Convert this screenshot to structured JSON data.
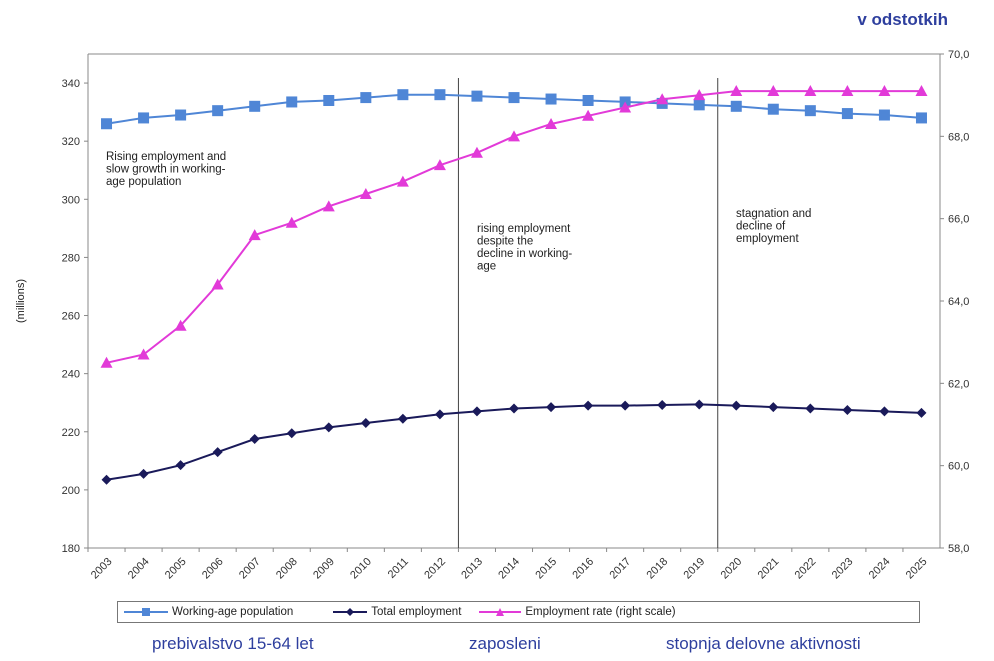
{
  "unit_label": "v odstotkih",
  "chart_data": {
    "type": "line",
    "x": [
      "2003",
      "2004",
      "2005",
      "2006",
      "2007",
      "2008",
      "2009",
      "2010",
      "2011",
      "2012",
      "2013",
      "2014",
      "2015",
      "2016",
      "2017",
      "2018",
      "2019",
      "2020",
      "2021",
      "2022",
      "2023",
      "2024",
      "2025"
    ],
    "y_left": {
      "label": "(millions)",
      "lim": [
        180,
        350
      ],
      "ticks": [
        "180",
        "200",
        "220",
        "240",
        "260",
        "280",
        "300",
        "320",
        "340"
      ]
    },
    "y_right": {
      "label": "",
      "lim": [
        58,
        70
      ],
      "ticks": [
        "58,0",
        "60,0",
        "62,0",
        "64,0",
        "66,0",
        "68,0",
        "70,0"
      ]
    },
    "series": [
      {
        "name": "Working-age population",
        "axis": "left",
        "color": "#4f86d6",
        "marker": "square",
        "values": [
          326,
          328,
          329,
          330.5,
          332,
          333.5,
          334,
          335,
          336,
          336,
          335.5,
          335,
          334.5,
          334,
          333.5,
          333,
          332.5,
          332,
          331,
          330.5,
          329.5,
          329,
          328
        ]
      },
      {
        "name": "Total employment",
        "axis": "left",
        "color": "#1a1a5a",
        "marker": "diamond",
        "values": [
          203.5,
          205.5,
          208.5,
          213,
          217.5,
          219.5,
          221.5,
          223,
          224.5,
          226,
          227,
          228,
          228.5,
          229,
          229,
          229.2,
          229.4,
          229,
          228.5,
          228,
          227.5,
          227,
          226.5
        ]
      },
      {
        "name": "Employment rate (right scale)",
        "axis": "right",
        "color": "#e23ad8",
        "marker": "triangle",
        "values": [
          62.5,
          62.7,
          63.4,
          64.4,
          65.6,
          65.9,
          66.3,
          66.6,
          66.9,
          67.3,
          67.6,
          68.0,
          68.3,
          68.5,
          68.7,
          68.9,
          69.0,
          69.1,
          69.1,
          69.1,
          69.1,
          69.1,
          69.1
        ]
      }
    ],
    "dividers_after_x": [
      "2012",
      "2019"
    ],
    "annotations": [
      {
        "lines": [
          "Rising employment and",
          "slow growth in working-",
          "age population"
        ]
      },
      {
        "lines": [
          "rising employment",
          "despite the",
          "decline in working-",
          "age"
        ]
      },
      {
        "lines": [
          "stagnation and",
          "decline of",
          "employment"
        ]
      }
    ],
    "legend_position": "bottom"
  },
  "captions": [
    "prebivalstvo 15-64 let",
    "zaposleni",
    "stopnja delovne aktivnosti"
  ]
}
